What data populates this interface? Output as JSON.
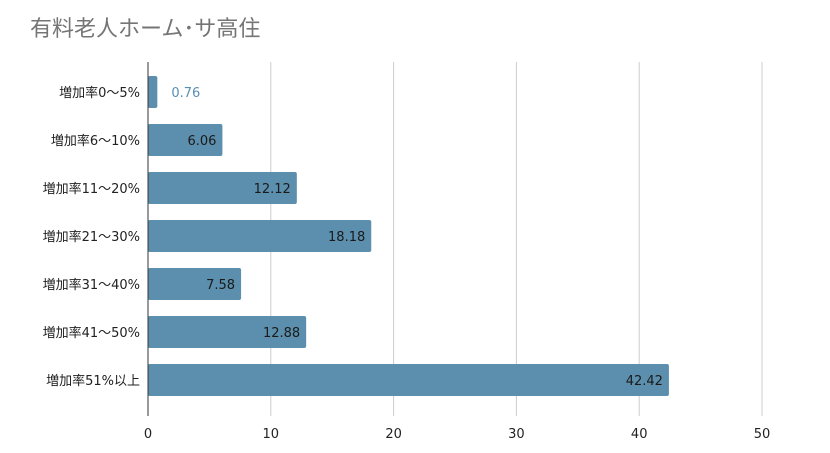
{
  "chart_data": {
    "type": "bar",
    "orientation": "horizontal",
    "title": "有料老人ホーム･サ高住",
    "xlabel": "",
    "ylabel": "",
    "categories": [
      "増加率0〜5%",
      "増加率6〜10%",
      "増加率11〜20%",
      "増加率21〜30%",
      "増加率31〜40%",
      "増加率41〜50%",
      "増加率51%以上"
    ],
    "values": [
      0.76,
      6.06,
      12.12,
      18.18,
      7.58,
      12.88,
      42.42
    ],
    "value_labels": [
      "0.76",
      "6.06",
      "12.12",
      "18.18",
      "7.58",
      "12.88",
      "42.42"
    ],
    "xlim": [
      0,
      50
    ],
    "xticks": [
      0,
      10,
      20,
      30,
      40,
      50
    ],
    "grid": true,
    "legend": "none",
    "colors": {
      "bar": "#5b8fad",
      "grid": "#cccccc",
      "title": "#757575",
      "outside_label": "#5a8fb5"
    }
  }
}
